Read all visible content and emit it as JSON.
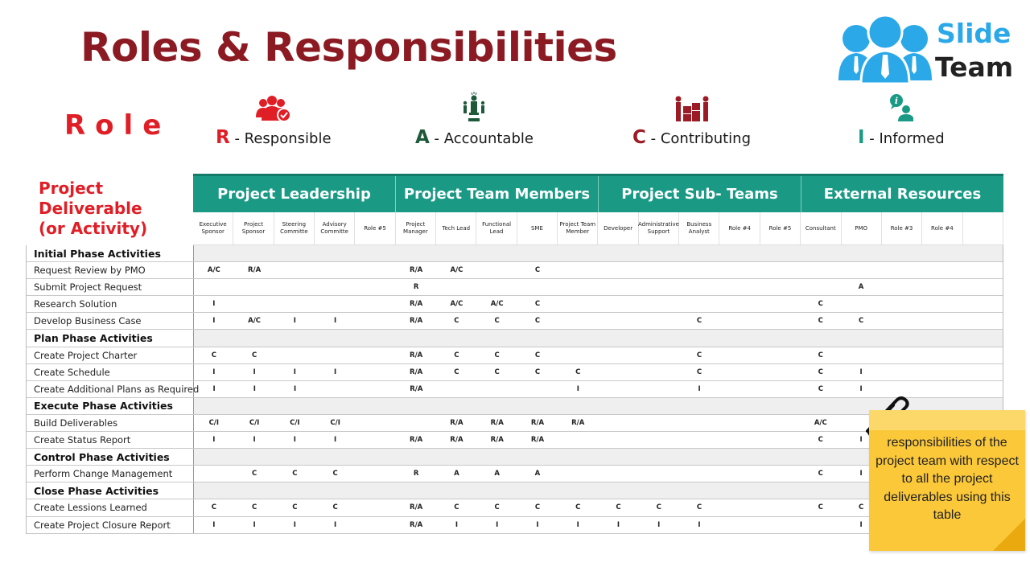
{
  "title": "Roles & Responsibilities",
  "logo": {
    "line1": "Slide",
    "line2": "Team"
  },
  "role_label": "Role",
  "legend": [
    {
      "letter": "R",
      "text": " - Responsible",
      "color": "#e01e26",
      "icon": "team-check-icon"
    },
    {
      "letter": "A",
      "text": " - Accountable",
      "color": "#1e5a3a",
      "icon": "leader-icon"
    },
    {
      "letter": "C",
      "text": " - Contributing",
      "color": "#9b1c24",
      "icon": "puzzle-team-icon"
    },
    {
      "letter": "I",
      "text": " - Informed",
      "color": "#1a9a85",
      "icon": "info-person-icon"
    }
  ],
  "deliverable_label": [
    "Project",
    "Deliverable",
    "(or Activity)"
  ],
  "groups": [
    "Project Leadership",
    "Project Team Members",
    "Project Sub- Teams",
    "External Resources"
  ],
  "columns": [
    "Executive Sponsor",
    "Project Sponsor",
    "Steering Committe",
    "Advisory Committe",
    "Role #5",
    "Project Manager",
    "Tech Lead",
    "Functional Lead",
    "SME",
    "Project Team Member",
    "Developer",
    "Administrative Support",
    "Business Analyst",
    "Role #4",
    "Role #5",
    "Consultant",
    "PMO",
    "Role #3",
    "Role #4",
    ""
  ],
  "rows": [
    {
      "type": "phase",
      "name": "Initial Phase Activities",
      "cells": []
    },
    {
      "type": "activity",
      "name": "Request Review by PMO",
      "cells": [
        "A/C",
        "R/A",
        "",
        "",
        "",
        "R/A",
        "A/C",
        "",
        "C",
        "",
        "",
        "",
        "",
        "",
        "",
        "",
        "",
        "",
        "",
        ""
      ]
    },
    {
      "type": "activity",
      "name": "Submit Project Request",
      "cells": [
        "",
        "",
        "",
        "",
        "",
        "R",
        "",
        "",
        "",
        "",
        "",
        "",
        "",
        "",
        "",
        "",
        "A",
        "",
        "",
        ""
      ]
    },
    {
      "type": "activity",
      "name": "Research Solution",
      "cells": [
        "I",
        "",
        "",
        "",
        "",
        "R/A",
        "A/C",
        "A/C",
        "C",
        "",
        "",
        "",
        "",
        "",
        "",
        "C",
        "",
        "",
        "",
        ""
      ]
    },
    {
      "type": "activity",
      "name": "Develop Business Case",
      "cells": [
        "I",
        "A/C",
        "I",
        "I",
        "",
        "R/A",
        "C",
        "C",
        "C",
        "",
        "",
        "",
        "C",
        "",
        "",
        "C",
        "C",
        "",
        "",
        ""
      ]
    },
    {
      "type": "phase",
      "name": "Plan Phase Activities",
      "cells": []
    },
    {
      "type": "activity",
      "name": "Create Project Charter",
      "cells": [
        "C",
        "C",
        "",
        "",
        "",
        "R/A",
        "C",
        "C",
        "C",
        "",
        "",
        "",
        "C",
        "",
        "",
        "C",
        "",
        "",
        "",
        ""
      ]
    },
    {
      "type": "activity",
      "name": "Create Schedule",
      "cells": [
        "I",
        "I",
        "I",
        "I",
        "",
        "R/A",
        "C",
        "C",
        "C",
        "C",
        "",
        "",
        "C",
        "",
        "",
        "C",
        "I",
        "",
        "",
        ""
      ]
    },
    {
      "type": "activity",
      "name": "Create Additional Plans as Required",
      "cells": [
        "I",
        "I",
        "I",
        "",
        "",
        "R/A",
        "",
        "",
        "",
        "I",
        "",
        "",
        "I",
        "",
        "",
        "C",
        "I",
        "",
        "",
        ""
      ]
    },
    {
      "type": "phase",
      "name": "Execute Phase Activities",
      "cells": []
    },
    {
      "type": "activity",
      "name": "Build Deliverables",
      "cells": [
        "C/I",
        "C/I",
        "C/I",
        "C/I",
        "",
        "",
        "R/A",
        "R/A",
        "R/A",
        "R/A",
        "",
        "",
        "",
        "",
        "",
        "A/C",
        "",
        "",
        "",
        ""
      ]
    },
    {
      "type": "activity",
      "name": "Create Status Report",
      "cells": [
        "I",
        "I",
        "I",
        "I",
        "",
        "R/A",
        "R/A",
        "R/A",
        "R/A",
        "",
        "",
        "",
        "",
        "",
        "",
        "C",
        "I",
        "",
        "",
        ""
      ]
    },
    {
      "type": "phase",
      "name": "Control Phase Activities",
      "cells": []
    },
    {
      "type": "activity",
      "name": "Perform Change Management",
      "cells": [
        "",
        "C",
        "C",
        "C",
        "",
        "R",
        "A",
        "A",
        "A",
        "",
        "",
        "",
        "",
        "",
        "",
        "C",
        "I",
        "",
        "",
        ""
      ]
    },
    {
      "type": "phase",
      "name": "Close Phase Activities",
      "cells": []
    },
    {
      "type": "activity",
      "name": "Create Lessions Learned",
      "cells": [
        "C",
        "C",
        "C",
        "C",
        "",
        "R/A",
        "C",
        "C",
        "C",
        "C",
        "C",
        "C",
        "C",
        "",
        "",
        "C",
        "C",
        "",
        "",
        ""
      ]
    },
    {
      "type": "activity",
      "name": "Create Project Closure Report",
      "cells": [
        "I",
        "I",
        "I",
        "I",
        "",
        "R/A",
        "I",
        "I",
        "I",
        "I",
        "I",
        "I",
        "I",
        "",
        "",
        "",
        "I",
        "",
        "",
        ""
      ]
    }
  ],
  "note": {
    "text": "responsibilities of the project team with respect to all the project deliverables using this table"
  },
  "colors": {
    "title": "#8b1a22",
    "header": "#1a9a85",
    "accent_red": "#e01e26",
    "note": "#fbc83a",
    "logo_blue": "#2aa8e8"
  }
}
